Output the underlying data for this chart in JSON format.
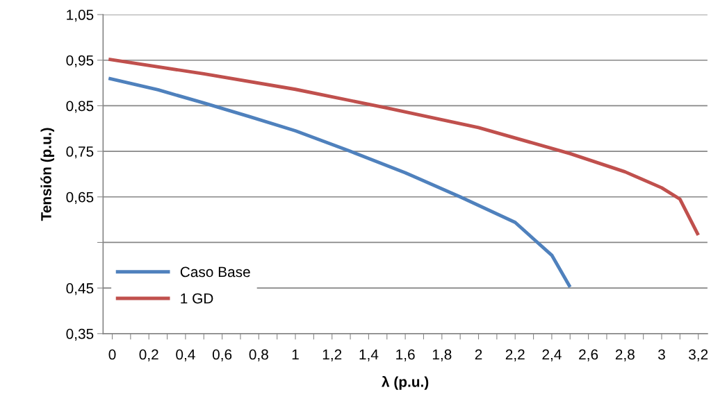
{
  "chart_data": {
    "type": "line",
    "xlabel": "λ (p.u.)",
    "ylabel": "Tensión (p.u.)",
    "series": [
      {
        "name": "Caso Base",
        "color": "#4f81bd",
        "x": [
          -0.02,
          0.25,
          0.5,
          0.75,
          1,
          1.3,
          1.6,
          1.9,
          2.2,
          2.3,
          2.4,
          2.5
        ],
        "values": [
          0.91,
          0.885,
          0.856,
          0.826,
          0.795,
          0.75,
          0.703,
          0.65,
          0.594,
          0.558,
          0.522,
          0.452
        ]
      },
      {
        "name": "1 GD",
        "color": "#c0504d",
        "x": [
          -0.02,
          0.5,
          1,
          1.5,
          2,
          2.5,
          2.8,
          3.0,
          3.1,
          3.2
        ],
        "values": [
          0.952,
          0.92,
          0.886,
          0.845,
          0.802,
          0.745,
          0.705,
          0.67,
          0.645,
          0.566
        ]
      }
    ],
    "xlim": [
      -0.05,
      3.25
    ],
    "xticks": [
      0,
      {
        "value": 0.1,
        "label": null
      },
      {
        "value": 0.2,
        "label": "0,2"
      },
      {
        "value": 0.3,
        "label": null
      },
      {
        "value": 0.4,
        "label": "0,4"
      },
      {
        "value": 0.5,
        "label": null
      },
      {
        "value": 0.6,
        "label": "0,6"
      },
      {
        "value": 0.7,
        "label": null
      },
      {
        "value": 0.8,
        "label": "0,8"
      },
      {
        "value": 0.9,
        "label": null
      },
      1,
      {
        "value": 1.1,
        "label": null
      },
      {
        "value": 1.2,
        "label": "1,2"
      },
      {
        "value": 1.3,
        "label": null
      },
      {
        "value": 1.4,
        "label": "1,4"
      },
      {
        "value": 1.5,
        "label": null
      },
      {
        "value": 1.6,
        "label": "1,6"
      },
      {
        "value": 1.7,
        "label": null
      },
      {
        "value": 1.8,
        "label": "1,8"
      },
      {
        "value": 1.9,
        "label": null
      },
      2,
      {
        "value": 2.1,
        "label": null
      },
      {
        "value": 2.2,
        "label": "2,2"
      },
      {
        "value": 2.3,
        "label": null
      },
      {
        "value": 2.4,
        "label": "2,4"
      },
      {
        "value": 2.5,
        "label": null
      },
      {
        "value": 2.6,
        "label": "2,6"
      },
      {
        "value": 2.7,
        "label": null
      },
      {
        "value": 2.8,
        "label": "2,8"
      },
      {
        "value": 2.9,
        "label": null
      },
      3,
      {
        "value": 3.1,
        "label": null
      },
      {
        "value": 3.2,
        "label": "3,2"
      }
    ],
    "ylim": [
      0.35,
      1.05
    ],
    "yticks": [
      {
        "value": 0.35,
        "label": "0,35"
      },
      {
        "value": 0.45,
        "label": "0,45"
      },
      {
        "value": 0.55,
        "label": null
      },
      {
        "value": 0.65,
        "label": "0,65"
      },
      {
        "value": 0.75,
        "label": "0,75"
      },
      {
        "value": 0.85,
        "label": "0,85"
      },
      {
        "value": 0.95,
        "label": "0,95"
      },
      {
        "value": 1.05,
        "label": "1,05"
      }
    ],
    "grid": "y",
    "legend": "bottom left",
    "marker": "none",
    "line_style": "solid"
  }
}
